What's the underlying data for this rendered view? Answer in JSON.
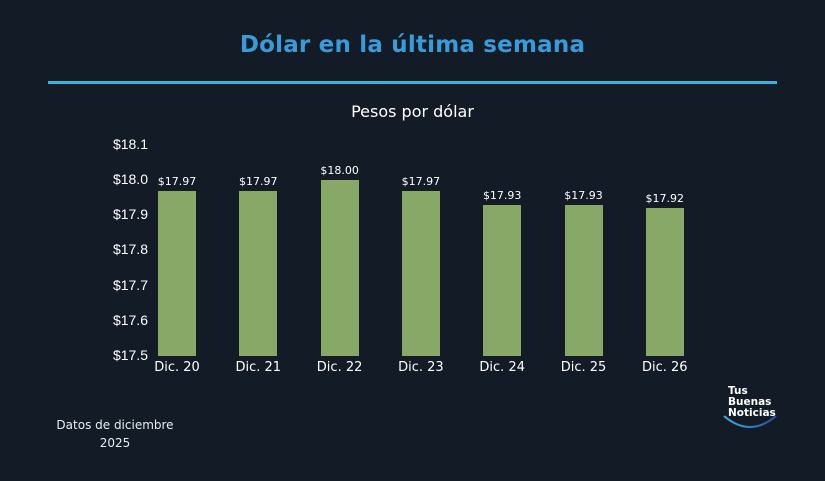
{
  "header": {
    "title": "Dólar en la última semana",
    "subtitle": "Pesos por dólar"
  },
  "colors": {
    "background": "#131b27",
    "title": "#3a9bd9",
    "rule": "#3db0dc",
    "bar": "#87a866"
  },
  "chart_data": {
    "type": "bar",
    "title": "Pesos por dólar",
    "xlabel": "",
    "ylabel": "",
    "categories": [
      "Dic. 20",
      "Dic. 21",
      "Dic. 22",
      "Dic. 23",
      "Dic. 24",
      "Dic. 25",
      "Dic. 26"
    ],
    "values": [
      17.97,
      17.97,
      18.0,
      17.97,
      17.93,
      17.93,
      17.92
    ],
    "value_labels": [
      "$17.97",
      "$17.97",
      "$18.00",
      "$17.97",
      "$17.93",
      "$17.93",
      "$17.92"
    ],
    "ylim": [
      17.5,
      18.1
    ],
    "yticks": [
      "$18.1",
      "$18.0",
      "$17.9",
      "$17.8",
      "$17.7",
      "$17.6",
      "$17.5"
    ],
    "grid": false,
    "legend": "none"
  },
  "footnote": {
    "line1": "Datos de diciembre",
    "line2": "2025"
  },
  "logo": {
    "line1": "Tus",
    "line2": "Buenas",
    "line3": "Noticias"
  }
}
